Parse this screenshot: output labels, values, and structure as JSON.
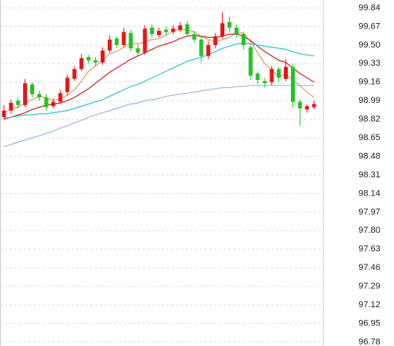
{
  "chart_data": {
    "type": "candlestick",
    "up_color": "#e8141a",
    "down_color": "#22c422",
    "grid": true,
    "ylim": [
      96.78,
      99.84
    ],
    "yticks": [
      99.84,
      99.67,
      {
        "value": 99.5,
        "label": "99.50"
      },
      99.33,
      99.16,
      98.99,
      98.82,
      98.65,
      98.48,
      98.31,
      98.14,
      97.97,
      {
        "value": 97.8,
        "label": "97.80"
      },
      97.63,
      97.46,
      97.29,
      97.12,
      96.95,
      96.78
    ],
    "open": [
      98.84,
      98.9,
      98.99,
      98.95,
      99.14,
      99.05,
      99.02,
      98.94,
      98.98,
      99.07,
      99.19,
      99.28,
      99.39,
      99.36,
      99.34,
      99.45,
      99.56,
      99.5,
      99.61,
      99.47,
      99.43,
      99.66,
      99.59,
      99.64,
      99.62,
      99.64,
      99.69,
      99.6,
      99.55,
      99.4,
      99.5,
      99.58,
      99.71,
      99.66,
      99.6,
      99.48,
      99.24,
      99.17,
      99.16,
      99.28,
      99.19,
      99.3,
      98.98,
      98.91,
      98.93
    ],
    "high": [
      98.95,
      99.0,
      99.02,
      99.19,
      99.16,
      99.08,
      99.05,
      99.01,
      99.09,
      99.23,
      99.31,
      99.42,
      99.41,
      99.39,
      99.48,
      99.59,
      99.58,
      99.66,
      99.64,
      99.5,
      99.68,
      99.69,
      99.66,
      99.67,
      99.68,
      99.71,
      99.72,
      99.63,
      99.58,
      99.54,
      99.61,
      99.8,
      99.76,
      99.69,
      99.62,
      99.5,
      99.26,
      99.2,
      99.31,
      99.3,
      99.37,
      99.33,
      99.0,
      98.96,
      98.99
    ],
    "low": [
      98.82,
      98.87,
      98.92,
      98.93,
      99.02,
      98.99,
      98.9,
      98.92,
      98.96,
      99.04,
      99.17,
      99.26,
      99.33,
      99.31,
      99.32,
      99.43,
      99.47,
      99.48,
      99.44,
      99.4,
      99.41,
      99.57,
      99.57,
      99.59,
      99.6,
      99.62,
      99.58,
      99.52,
      99.34,
      99.37,
      99.47,
      99.56,
      99.62,
      99.57,
      99.46,
      99.18,
      99.14,
      99.11,
      99.13,
      99.16,
      99.17,
      98.93,
      98.76,
      98.88,
      98.91
    ],
    "close": [
      98.9,
      98.97,
      98.95,
      99.15,
      99.05,
      99.02,
      98.93,
      98.98,
      99.06,
      99.2,
      99.28,
      99.38,
      99.36,
      99.34,
      99.45,
      99.55,
      99.5,
      99.62,
      99.47,
      99.43,
      99.65,
      99.6,
      99.63,
      99.62,
      99.65,
      99.68,
      99.6,
      99.55,
      99.4,
      99.5,
      99.58,
      99.7,
      99.66,
      99.6,
      99.5,
      99.22,
      99.18,
      99.15,
      99.28,
      99.2,
      99.3,
      98.98,
      98.92,
      98.94,
      98.96
    ],
    "ma_lines": [
      {
        "color": "#d9a066",
        "values": [
          98.88,
          98.91,
          98.93,
          98.97,
          99.0,
          99.03,
          99.02,
          98.99,
          99.01,
          99.04,
          99.09,
          99.17,
          99.26,
          99.31,
          99.36,
          99.42,
          99.44,
          99.48,
          99.52,
          99.51,
          99.53,
          99.55,
          99.56,
          99.59,
          99.63,
          99.64,
          99.64,
          99.62,
          99.58,
          99.55,
          99.53,
          99.55,
          99.57,
          99.61,
          99.61,
          99.53,
          99.43,
          99.33,
          99.27,
          99.21,
          99.23,
          99.18,
          99.13,
          99.07,
          99.02
        ]
      },
      {
        "color": "#c8262a",
        "values": [
          98.82,
          98.84,
          98.86,
          98.88,
          98.91,
          98.93,
          98.95,
          98.96,
          98.97,
          98.99,
          99.02,
          99.06,
          99.1,
          99.15,
          99.2,
          99.25,
          99.29,
          99.33,
          99.37,
          99.4,
          99.43,
          99.46,
          99.49,
          99.51,
          99.53,
          99.56,
          99.58,
          99.59,
          99.58,
          99.57,
          99.57,
          99.58,
          99.6,
          99.6,
          99.58,
          99.54,
          99.49,
          99.44,
          99.4,
          99.36,
          99.34,
          99.29,
          99.24,
          99.2,
          99.16
        ]
      },
      {
        "color": "#2ec4cc",
        "values": [
          98.83,
          98.84,
          98.85,
          98.86,
          98.86,
          98.87,
          98.87,
          98.88,
          98.89,
          98.9,
          98.92,
          98.94,
          98.96,
          98.98,
          99.0,
          99.03,
          99.06,
          99.09,
          99.12,
          99.14,
          99.17,
          99.2,
          99.23,
          99.26,
          99.29,
          99.32,
          99.35,
          99.37,
          99.39,
          99.41,
          99.44,
          99.47,
          99.49,
          99.51,
          99.52,
          99.51,
          99.5,
          99.49,
          99.48,
          99.47,
          99.46,
          99.44,
          99.42,
          99.41,
          99.4
        ]
      },
      {
        "color": "#9cb8d8",
        "values": [
          98.57,
          98.59,
          98.61,
          98.63,
          98.65,
          98.67,
          98.69,
          98.71,
          98.74,
          98.76,
          98.79,
          98.81,
          98.84,
          98.86,
          98.88,
          98.9,
          98.92,
          98.94,
          98.96,
          98.97,
          98.99,
          99.0,
          99.01,
          99.03,
          99.04,
          99.05,
          99.06,
          99.07,
          99.08,
          99.09,
          99.1,
          99.11,
          99.11,
          99.12,
          99.12,
          99.13,
          99.13,
          99.13,
          99.13,
          99.13,
          99.13,
          99.13,
          99.13,
          99.13,
          99.13
        ]
      }
    ]
  }
}
